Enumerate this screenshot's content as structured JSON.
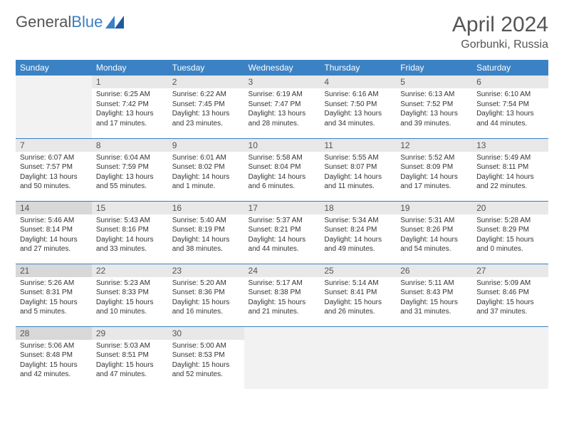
{
  "brand": {
    "part1": "General",
    "part2": "Blue"
  },
  "title": "April 2024",
  "location": "Gorbunki, Russia",
  "colors": {
    "header_bg": "#3b82c4",
    "header_text": "#ffffff",
    "daynum_bg": "#e8e8e8",
    "daynum_shade_bg": "#d8d8d8",
    "border": "#3b7fc4",
    "text": "#333333",
    "title": "#555555"
  },
  "weekdays": [
    "Sunday",
    "Monday",
    "Tuesday",
    "Wednesday",
    "Thursday",
    "Friday",
    "Saturday"
  ],
  "weeks": [
    [
      null,
      {
        "n": "1",
        "sr": "6:25 AM",
        "ss": "7:42 PM",
        "dl": "13 hours and 17 minutes."
      },
      {
        "n": "2",
        "sr": "6:22 AM",
        "ss": "7:45 PM",
        "dl": "13 hours and 23 minutes."
      },
      {
        "n": "3",
        "sr": "6:19 AM",
        "ss": "7:47 PM",
        "dl": "13 hours and 28 minutes."
      },
      {
        "n": "4",
        "sr": "6:16 AM",
        "ss": "7:50 PM",
        "dl": "13 hours and 34 minutes."
      },
      {
        "n": "5",
        "sr": "6:13 AM",
        "ss": "7:52 PM",
        "dl": "13 hours and 39 minutes."
      },
      {
        "n": "6",
        "sr": "6:10 AM",
        "ss": "7:54 PM",
        "dl": "13 hours and 44 minutes."
      }
    ],
    [
      {
        "n": "7",
        "sr": "6:07 AM",
        "ss": "7:57 PM",
        "dl": "13 hours and 50 minutes."
      },
      {
        "n": "8",
        "sr": "6:04 AM",
        "ss": "7:59 PM",
        "dl": "13 hours and 55 minutes."
      },
      {
        "n": "9",
        "sr": "6:01 AM",
        "ss": "8:02 PM",
        "dl": "14 hours and 1 minute."
      },
      {
        "n": "10",
        "sr": "5:58 AM",
        "ss": "8:04 PM",
        "dl": "14 hours and 6 minutes."
      },
      {
        "n": "11",
        "sr": "5:55 AM",
        "ss": "8:07 PM",
        "dl": "14 hours and 11 minutes."
      },
      {
        "n": "12",
        "sr": "5:52 AM",
        "ss": "8:09 PM",
        "dl": "14 hours and 17 minutes."
      },
      {
        "n": "13",
        "sr": "5:49 AM",
        "ss": "8:11 PM",
        "dl": "14 hours and 22 minutes."
      }
    ],
    [
      {
        "n": "14",
        "sr": "5:46 AM",
        "ss": "8:14 PM",
        "dl": "14 hours and 27 minutes.",
        "shade": true
      },
      {
        "n": "15",
        "sr": "5:43 AM",
        "ss": "8:16 PM",
        "dl": "14 hours and 33 minutes."
      },
      {
        "n": "16",
        "sr": "5:40 AM",
        "ss": "8:19 PM",
        "dl": "14 hours and 38 minutes."
      },
      {
        "n": "17",
        "sr": "5:37 AM",
        "ss": "8:21 PM",
        "dl": "14 hours and 44 minutes."
      },
      {
        "n": "18",
        "sr": "5:34 AM",
        "ss": "8:24 PM",
        "dl": "14 hours and 49 minutes."
      },
      {
        "n": "19",
        "sr": "5:31 AM",
        "ss": "8:26 PM",
        "dl": "14 hours and 54 minutes."
      },
      {
        "n": "20",
        "sr": "5:28 AM",
        "ss": "8:29 PM",
        "dl": "15 hours and 0 minutes."
      }
    ],
    [
      {
        "n": "21",
        "sr": "5:26 AM",
        "ss": "8:31 PM",
        "dl": "15 hours and 5 minutes.",
        "shade": true
      },
      {
        "n": "22",
        "sr": "5:23 AM",
        "ss": "8:33 PM",
        "dl": "15 hours and 10 minutes."
      },
      {
        "n": "23",
        "sr": "5:20 AM",
        "ss": "8:36 PM",
        "dl": "15 hours and 16 minutes."
      },
      {
        "n": "24",
        "sr": "5:17 AM",
        "ss": "8:38 PM",
        "dl": "15 hours and 21 minutes."
      },
      {
        "n": "25",
        "sr": "5:14 AM",
        "ss": "8:41 PM",
        "dl": "15 hours and 26 minutes."
      },
      {
        "n": "26",
        "sr": "5:11 AM",
        "ss": "8:43 PM",
        "dl": "15 hours and 31 minutes."
      },
      {
        "n": "27",
        "sr": "5:09 AM",
        "ss": "8:46 PM",
        "dl": "15 hours and 37 minutes."
      }
    ],
    [
      {
        "n": "28",
        "sr": "5:06 AM",
        "ss": "8:48 PM",
        "dl": "15 hours and 42 minutes.",
        "shade": true
      },
      {
        "n": "29",
        "sr": "5:03 AM",
        "ss": "8:51 PM",
        "dl": "15 hours and 47 minutes."
      },
      {
        "n": "30",
        "sr": "5:00 AM",
        "ss": "8:53 PM",
        "dl": "15 hours and 52 minutes."
      },
      null,
      null,
      null,
      null
    ]
  ],
  "labels": {
    "sunrise": "Sunrise:",
    "sunset": "Sunset:",
    "daylight": "Daylight:"
  }
}
